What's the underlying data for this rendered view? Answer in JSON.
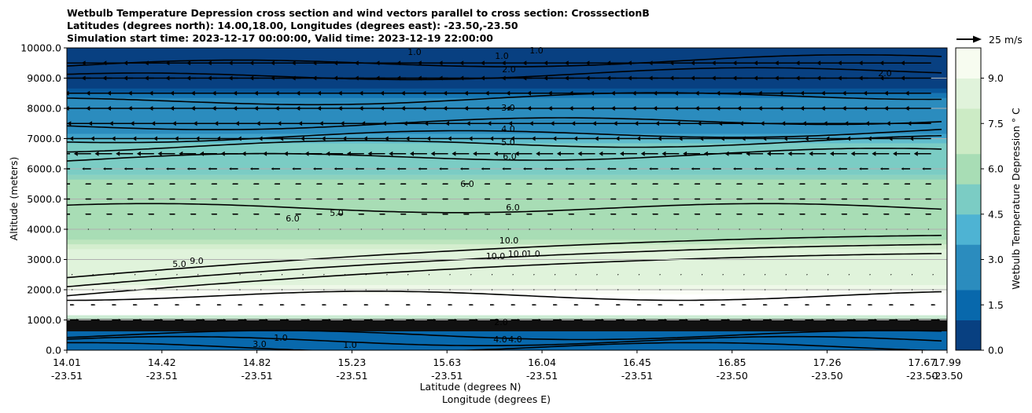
{
  "title_lines": [
    "Wetbulb Temperature Depression cross section and wind vectors parallel to cross section: CrosssectionB",
    "Latitudes (degrees north): 14.00,18.00, Longitudes (degrees east): -23.50,-23.50",
    "Simulation start time: 2023-12-17 00:00:00, Valid time: 2023-12-19 22:00:00"
  ],
  "chart_data": {
    "type": "heatmap",
    "ylabel": "Altitude (meters)",
    "xlabel": "Latitude (degrees N)",
    "xlabel2": "Longitude (degrees E)",
    "ylim": [
      0,
      10000
    ],
    "yticks": [
      "0.0",
      "1000.0",
      "2000.0",
      "3000.0",
      "4000.0",
      "5000.0",
      "6000.0",
      "7000.0",
      "8000.0",
      "9000.0",
      "10000.0"
    ],
    "xticks": [
      {
        "lat": "14.01",
        "lon": "-23.51"
      },
      {
        "lat": "14.42",
        "lon": "-23.51"
      },
      {
        "lat": "14.82",
        "lon": "-23.51"
      },
      {
        "lat": "15.23",
        "lon": "-23.51"
      },
      {
        "lat": "15.63",
        "lon": "-23.51"
      },
      {
        "lat": "16.04",
        "lon": "-23.51"
      },
      {
        "lat": "16.45",
        "lon": "-23.51"
      },
      {
        "lat": "16.85",
        "lon": "-23.50"
      },
      {
        "lat": "17.26",
        "lon": "-23.50"
      },
      {
        "lat": "17.67",
        "lon": "-23.50"
      },
      {
        "lat": "17.99",
        "lon": "-23.50"
      }
    ],
    "grid": "horizontal",
    "colorbar": {
      "label": "Wetbulb Temperature Depression ° C",
      "range": [
        0,
        10
      ],
      "ticks": [
        "0.0",
        "1.5",
        "3.0",
        "4.5",
        "6.0",
        "7.5",
        "9.0"
      ],
      "colormap": "GnBu_r",
      "colors": [
        "#084081",
        "#0868ac",
        "#2b8cbe",
        "#4eb3d3",
        "#7bccc4",
        "#a8ddb5",
        "#ccebc5",
        "#e0f3db",
        "#f7fcf0"
      ]
    },
    "vector_key": {
      "label": "25 m/s",
      "speed": 25
    },
    "contour_labels": [
      "1.0",
      "1.0",
      "1.0",
      "2.0",
      "3.0",
      "4.0",
      "5.0",
      "6.0",
      "6.0",
      "6.0",
      "6.0",
      "5.0",
      "5.0",
      "9.0",
      "10.0",
      "10.0",
      "10.0",
      "1.0",
      "2.0",
      "2.0",
      "4.0",
      "4.0",
      "3.0",
      "1.0",
      "1.0"
    ],
    "layers": [
      {
        "alt_top": 1000,
        "value": 1.5
      },
      {
        "alt_top": 2000,
        "value": 10.5
      },
      {
        "alt_top": 3500,
        "value": 8.0
      },
      {
        "alt_top": 5800,
        "value": 6.0
      },
      {
        "alt_top": 7000,
        "value": 4.5
      },
      {
        "alt_top": 8500,
        "value": 2.5
      },
      {
        "alt_top": 10000,
        "value": 1.0
      }
    ],
    "wind_levels": [
      {
        "alt": 9500,
        "speed": 12,
        "dir": "west"
      },
      {
        "alt": 9000,
        "speed": 12,
        "dir": "west"
      },
      {
        "alt": 8500,
        "speed": 10,
        "dir": "west"
      },
      {
        "alt": 8000,
        "speed": 10,
        "dir": "west"
      },
      {
        "alt": 7500,
        "speed": 9,
        "dir": "west"
      },
      {
        "alt": 7000,
        "speed": 8,
        "dir": "west"
      },
      {
        "alt": 6500,
        "speed": 6,
        "dir": "west"
      },
      {
        "alt": 6000,
        "speed": 3,
        "dir": "west"
      },
      {
        "alt": 5500,
        "speed": 2,
        "dir": "west"
      },
      {
        "alt": 5000,
        "speed": 2,
        "dir": "west"
      },
      {
        "alt": 4500,
        "speed": 2,
        "dir": "west"
      },
      {
        "alt": 4000,
        "speed": 1,
        "dir": "west"
      },
      {
        "alt": 2500,
        "speed": 0.3,
        "dir": "east"
      },
      {
        "alt": 2000,
        "speed": 0.5,
        "dir": "east"
      },
      {
        "alt": 1500,
        "speed": 1.5,
        "dir": "east"
      },
      {
        "alt": 1000,
        "speed": 3,
        "dir": "east"
      }
    ]
  }
}
